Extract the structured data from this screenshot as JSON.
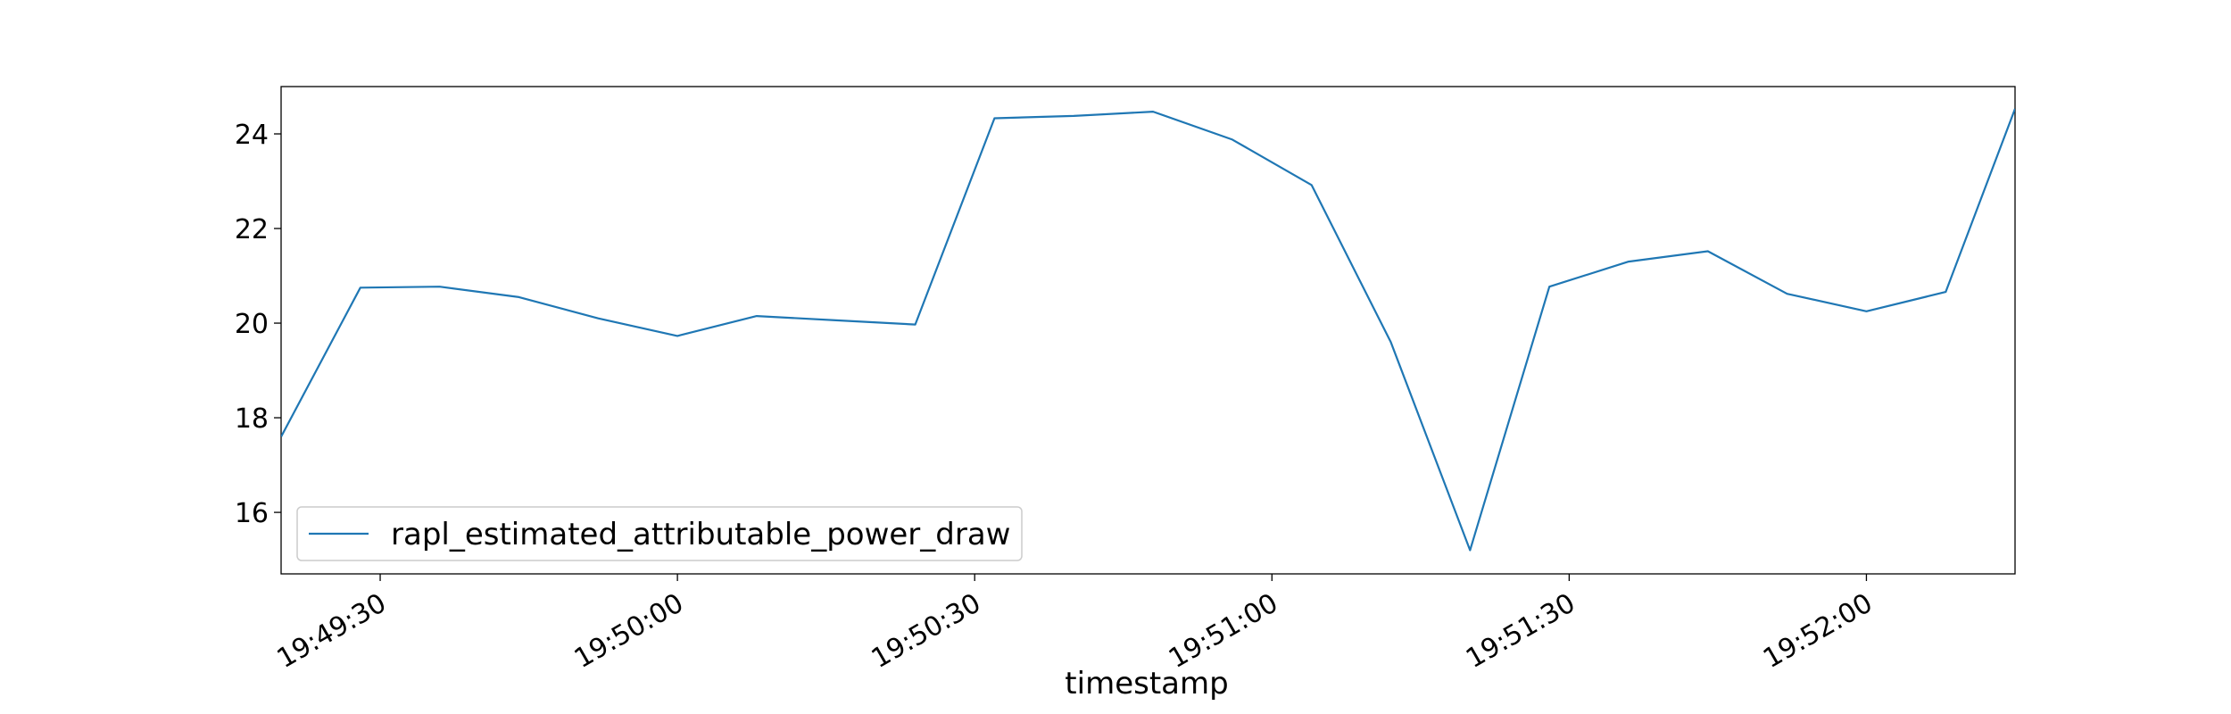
{
  "chart_data": {
    "type": "line",
    "title": "",
    "xlabel": "timestamp",
    "ylabel": "",
    "x_ticks": [
      "19:49:30",
      "19:50:00",
      "19:50:30",
      "19:51:00",
      "19:51:30",
      "19:52:00"
    ],
    "y_ticks": [
      16,
      18,
      20,
      22,
      24
    ],
    "xlim": [
      "19:49:20",
      "19:52:15"
    ],
    "ylim": [
      14.7,
      25.0
    ],
    "grid": false,
    "legend_position": "lower-left",
    "series": [
      {
        "name": "rapl_estimated_attributable_power_draw",
        "color": "#1f77b4",
        "x": [
          "19:49:20",
          "19:49:28",
          "19:49:36",
          "19:49:44",
          "19:49:52",
          "19:50:00",
          "19:50:08",
          "19:50:16",
          "19:50:24",
          "19:50:32",
          "19:50:40",
          "19:50:48",
          "19:50:56",
          "19:51:04",
          "19:51:12",
          "19:51:20",
          "19:51:28",
          "19:51:36",
          "19:51:44",
          "19:51:52",
          "19:52:00",
          "19:52:08",
          "19:52:15"
        ],
        "y": [
          17.6,
          20.75,
          20.77,
          20.55,
          20.1,
          19.73,
          20.15,
          20.06,
          19.97,
          24.33,
          24.38,
          24.47,
          23.88,
          22.92,
          19.6,
          15.2,
          20.77,
          21.3,
          21.52,
          20.62,
          20.25,
          20.66,
          24.53
        ]
      }
    ]
  }
}
